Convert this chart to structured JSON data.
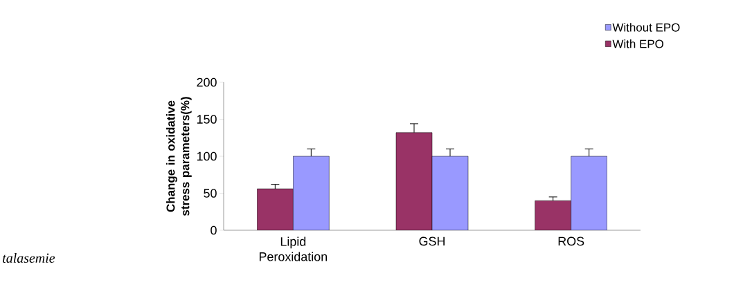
{
  "chart_data": {
    "type": "bar",
    "ylabel": "Change in oxidative stress parameters(%)",
    "categories": [
      "Lipid Peroxidation",
      "GSH",
      "ROS"
    ],
    "series": [
      {
        "name": "With EPO",
        "color": "#993366",
        "values": [
          56,
          132,
          40
        ],
        "errors": [
          [
            56,
            62
          ],
          [
            132,
            144
          ],
          [
            40,
            45
          ]
        ]
      },
      {
        "name": "Without EPO",
        "color": "#9999ff",
        "values": [
          100,
          100,
          100
        ],
        "errors": [
          [
            100,
            110
          ],
          [
            100,
            110
          ],
          [
            100,
            110
          ]
        ]
      }
    ],
    "ylim": [
      0,
      200
    ],
    "yticks": [
      0,
      50,
      100,
      150,
      200
    ],
    "legend": "top right",
    "annotations": [
      "talasemie"
    ]
  }
}
